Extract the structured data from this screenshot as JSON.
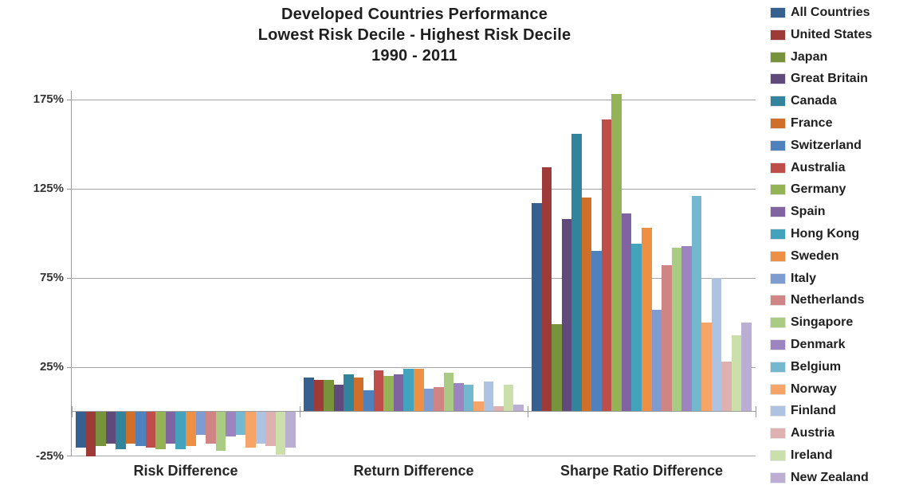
{
  "title": {
    "line1": "Developed Countries Performance",
    "line2": "Lowest Risk Decile - Highest Risk Decile",
    "line3": "1990 - 2011"
  },
  "chart_data": {
    "type": "bar",
    "title": "Developed Countries Performance",
    "subtitle": "Lowest Risk Decile - Highest Risk Decile",
    "period": "1990 - 2011",
    "unit": "percent",
    "grid": true,
    "legend_position": "right",
    "categories": [
      "Risk Difference",
      "Return Difference",
      "Sharpe Ratio Difference"
    ],
    "ylim": [
      -25,
      180
    ],
    "yticks": [
      "175%",
      "125%",
      "75%",
      "25%",
      "-25%"
    ],
    "ytick_values": [
      175,
      125,
      75,
      25,
      -25
    ],
    "series": [
      {
        "name": "All Countries",
        "color": "#36608F",
        "values": [
          -20,
          19,
          117
        ]
      },
      {
        "name": "United States",
        "color": "#9E3B38",
        "values": [
          -25,
          18,
          137
        ]
      },
      {
        "name": "Japan",
        "color": "#77933C",
        "values": [
          -19,
          18,
          49
        ]
      },
      {
        "name": "Great Britain",
        "color": "#5F4A7B",
        "values": [
          -18,
          15,
          108
        ]
      },
      {
        "name": "Canada",
        "color": "#31849B",
        "values": [
          -21,
          21,
          156
        ]
      },
      {
        "name": "France",
        "color": "#D06F2A",
        "values": [
          -18,
          19,
          120
        ]
      },
      {
        "name": "Switzerland",
        "color": "#4F81BD",
        "values": [
          -19,
          12,
          90
        ]
      },
      {
        "name": "Australia",
        "color": "#BF4E4B",
        "values": [
          -20,
          23,
          164
        ]
      },
      {
        "name": "Germany",
        "color": "#94B354",
        "values": [
          -21,
          20,
          178
        ]
      },
      {
        "name": "Spain",
        "color": "#8064A2",
        "values": [
          -18,
          21,
          111
        ]
      },
      {
        "name": "Hong Kong",
        "color": "#43A2BC",
        "values": [
          -21,
          24,
          94
        ]
      },
      {
        "name": "Sweden",
        "color": "#ED9044",
        "values": [
          -19,
          24,
          103
        ]
      },
      {
        "name": "Italy",
        "color": "#7E9CD0",
        "values": [
          -13,
          13,
          57
        ]
      },
      {
        "name": "Netherlands",
        "color": "#CF8584",
        "values": [
          -18,
          14,
          82
        ]
      },
      {
        "name": "Singapore",
        "color": "#A9CB84",
        "values": [
          -22,
          22,
          92
        ]
      },
      {
        "name": "Denmark",
        "color": "#9B84BF",
        "values": [
          -14,
          16,
          93
        ]
      },
      {
        "name": "Belgium",
        "color": "#73B8CE",
        "values": [
          -13,
          15,
          121
        ]
      },
      {
        "name": "Norway",
        "color": "#F7A468",
        "values": [
          -20,
          6,
          50
        ]
      },
      {
        "name": "Finland",
        "color": "#AEC2E2",
        "values": [
          -18,
          17,
          75
        ]
      },
      {
        "name": "Austria",
        "color": "#DFB0B0",
        "values": [
          -19,
          3,
          28
        ]
      },
      {
        "name": "Ireland",
        "color": "#CBDFAB",
        "values": [
          -24,
          15,
          43
        ]
      },
      {
        "name": "New Zealand",
        "color": "#BAAED3",
        "values": [
          -20,
          4,
          50
        ]
      }
    ]
  },
  "colors": {
    "gridline": "#A6A6A6",
    "axis": "#9A9A9A",
    "title_text": "#1F1F1F",
    "label_text": "#262626",
    "background": "#FFFFFF"
  }
}
